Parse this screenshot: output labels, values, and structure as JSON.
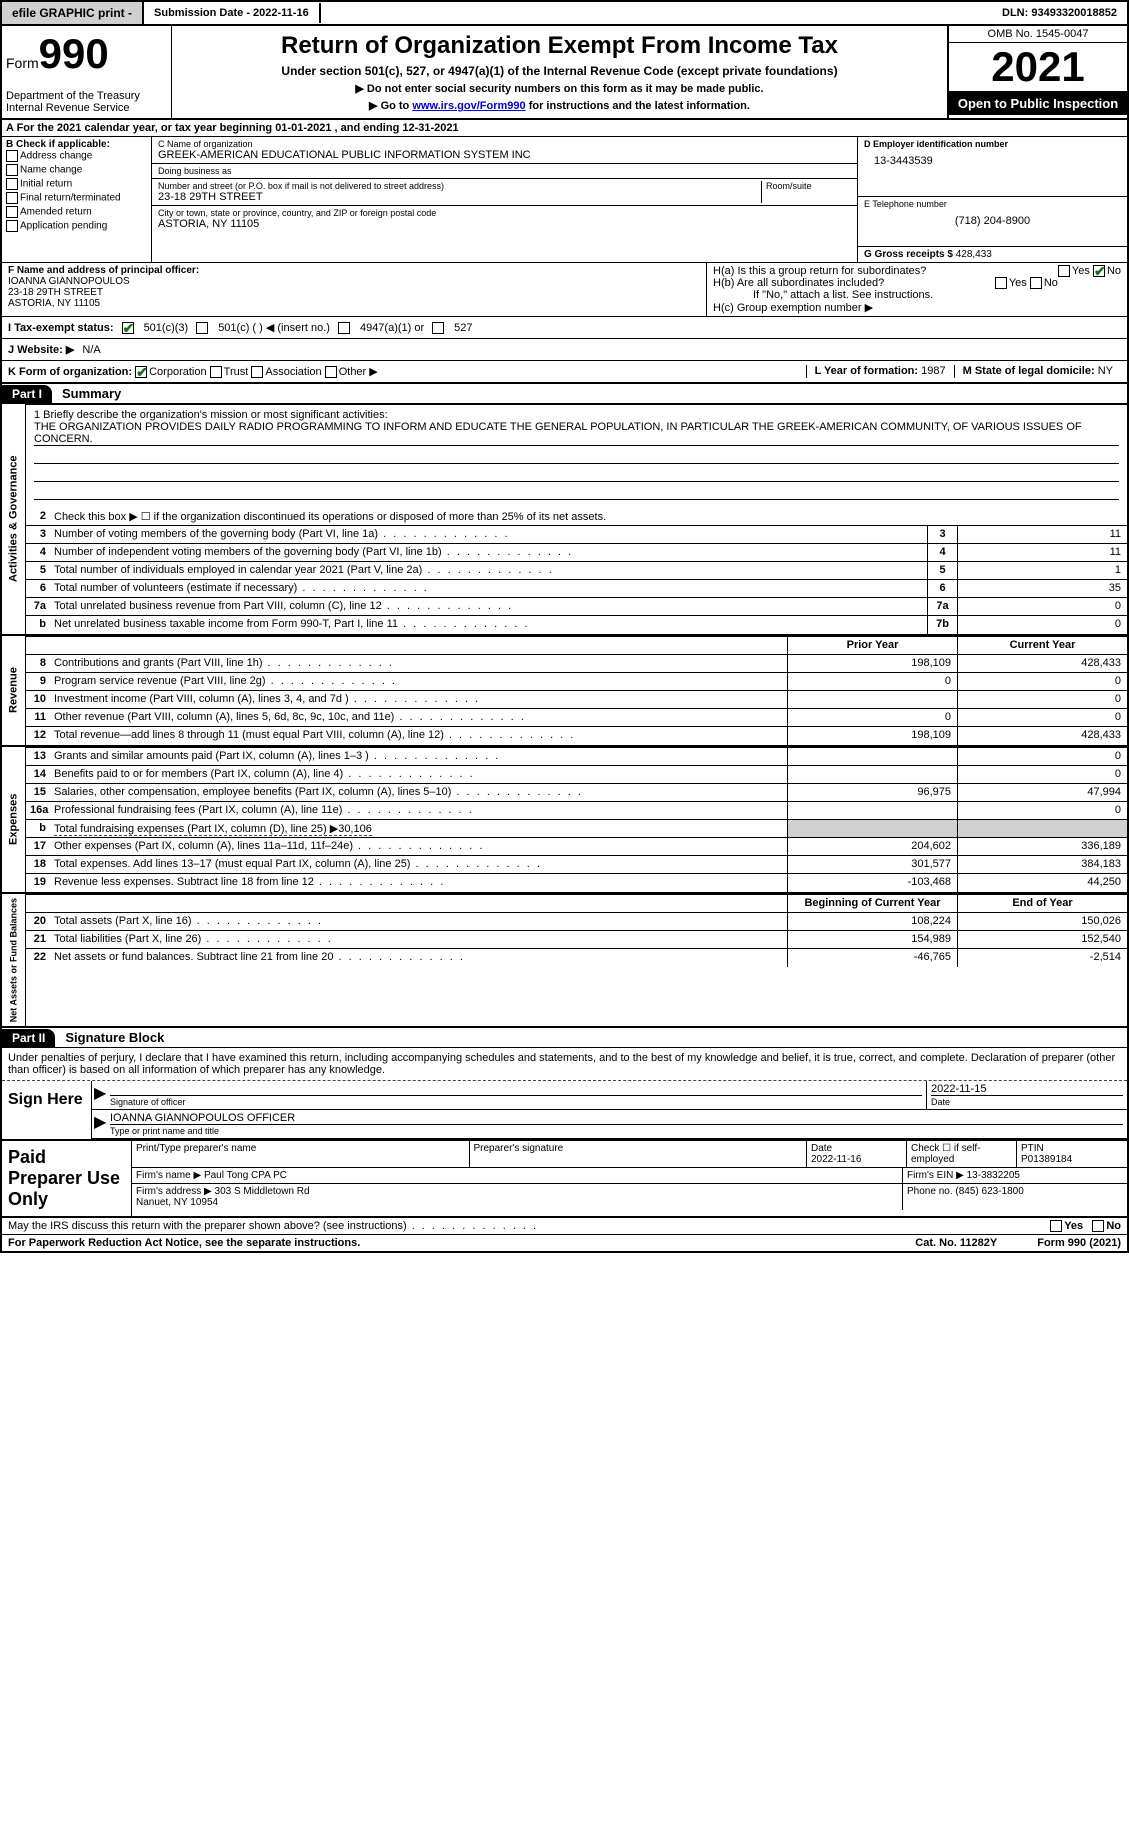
{
  "topbar": {
    "efile": "efile GRAPHIC print -",
    "submission": "Submission Date - 2022-11-16",
    "dln": "DLN: 93493320018852"
  },
  "header": {
    "form_label": "Form",
    "form_number": "990",
    "dept": "Department of the Treasury\nInternal Revenue Service",
    "title": "Return of Organization Exempt From Income Tax",
    "subtitle": "Under section 501(c), 527, or 4947(a)(1) of the Internal Revenue Code (except private foundations)",
    "instr1": "▶ Do not enter social security numbers on this form as it may be made public.",
    "instr2_pre": "▶ Go to ",
    "instr2_link": "www.irs.gov/Form990",
    "instr2_post": " for instructions and the latest information.",
    "omb": "OMB No. 1545-0047",
    "year": "2021",
    "open": "Open to Public Inspection"
  },
  "rowA": "A For the 2021 calendar year, or tax year beginning 01-01-2021   , and ending 12-31-2021",
  "colB": {
    "label": "B Check if applicable:",
    "items": [
      "Address change",
      "Name change",
      "Initial return",
      "Final return/terminated",
      "Amended return",
      "Application pending"
    ]
  },
  "colC": {
    "name_lbl": "C Name of organization",
    "name": "GREEK-AMERICAN EDUCATIONAL PUBLIC INFORMATION SYSTEM INC",
    "dba_lbl": "Doing business as",
    "dba": "",
    "street_lbl": "Number and street (or P.O. box if mail is not delivered to street address)",
    "room_lbl": "Room/suite",
    "street": "23-18 29TH STREET",
    "city_lbl": "City or town, state or province, country, and ZIP or foreign postal code",
    "city": "ASTORIA, NY  11105"
  },
  "colD": {
    "ein_lbl": "D Employer identification number",
    "ein": "13-3443539",
    "phone_lbl": "E Telephone number",
    "phone": "(718) 204-8900",
    "gross_lbl": "G Gross receipts $",
    "gross": "428,433"
  },
  "rowF": {
    "lbl": "F Name and address of principal officer:",
    "name": "IOANNA GIANNOPOULOS",
    "street": "23-18 29TH STREET",
    "city": "ASTORIA, NY  11105"
  },
  "rowH": {
    "a": "H(a)  Is this a group return for subordinates?",
    "b": "H(b)  Are all subordinates included?",
    "note": "If \"No,\" attach a list. See instructions.",
    "c": "H(c)  Group exemption number ▶"
  },
  "rowI": {
    "label": "I   Tax-exempt status:",
    "opt1": "501(c)(3)",
    "opt2": "501(c) (  ) ◀ (insert no.)",
    "opt3": "4947(a)(1) or",
    "opt4": "527"
  },
  "rowJ": {
    "label": "J   Website: ▶",
    "val": "N/A"
  },
  "rowK": {
    "label": "K Form of organization:",
    "opts": [
      "Corporation",
      "Trust",
      "Association",
      "Other ▶"
    ],
    "l_lbl": "L Year of formation:",
    "l_val": "1987",
    "m_lbl": "M State of legal domicile:",
    "m_val": "NY"
  },
  "part1": {
    "hdr": "Part I",
    "title": "Summary"
  },
  "mission": {
    "lbl": "1  Briefly describe the organization's mission or most significant activities:",
    "text": "THE ORGANIZATION PROVIDES DAILY RADIO PROGRAMMING TO INFORM AND EDUCATE THE GENERAL POPULATION, IN PARTICULAR THE GREEK-AMERICAN COMMUNITY, OF VARIOUS ISSUES OF CONCERN."
  },
  "line2": "Check this box ▶ ☐  if the organization discontinued its operations or disposed of more than 25% of its net assets.",
  "activities": {
    "tab": "Activities & Governance",
    "lines": [
      {
        "n": "3",
        "d": "Number of voting members of the governing body (Part VI, line 1a)",
        "box": "3",
        "v": "11"
      },
      {
        "n": "4",
        "d": "Number of independent voting members of the governing body (Part VI, line 1b)",
        "box": "4",
        "v": "11"
      },
      {
        "n": "5",
        "d": "Total number of individuals employed in calendar year 2021 (Part V, line 2a)",
        "box": "5",
        "v": "1"
      },
      {
        "n": "6",
        "d": "Total number of volunteers (estimate if necessary)",
        "box": "6",
        "v": "35"
      },
      {
        "n": "7a",
        "d": "Total unrelated business revenue from Part VIII, column (C), line 12",
        "box": "7a",
        "v": "0"
      },
      {
        "n": "b",
        "d": "Net unrelated business taxable income from Form 990-T, Part I, line 11",
        "box": "7b",
        "v": "0"
      }
    ]
  },
  "col_hdr": {
    "prior": "Prior Year",
    "current": "Current Year",
    "beg": "Beginning of Current Year",
    "end": "End of Year"
  },
  "revenue": {
    "tab": "Revenue",
    "lines": [
      {
        "n": "8",
        "d": "Contributions and grants (Part VIII, line 1h)",
        "p": "198,109",
        "c": "428,433"
      },
      {
        "n": "9",
        "d": "Program service revenue (Part VIII, line 2g)",
        "p": "0",
        "c": "0"
      },
      {
        "n": "10",
        "d": "Investment income (Part VIII, column (A), lines 3, 4, and 7d )",
        "p": "",
        "c": "0"
      },
      {
        "n": "11",
        "d": "Other revenue (Part VIII, column (A), lines 5, 6d, 8c, 9c, 10c, and 11e)",
        "p": "0",
        "c": "0"
      },
      {
        "n": "12",
        "d": "Total revenue—add lines 8 through 11 (must equal Part VIII, column (A), line 12)",
        "p": "198,109",
        "c": "428,433"
      }
    ]
  },
  "expenses": {
    "tab": "Expenses",
    "lines": [
      {
        "n": "13",
        "d": "Grants and similar amounts paid (Part IX, column (A), lines 1–3 )",
        "p": "",
        "c": "0"
      },
      {
        "n": "14",
        "d": "Benefits paid to or for members (Part IX, column (A), line 4)",
        "p": "",
        "c": "0"
      },
      {
        "n": "15",
        "d": "Salaries, other compensation, employee benefits (Part IX, column (A), lines 5–10)",
        "p": "96,975",
        "c": "47,994"
      },
      {
        "n": "16a",
        "d": "Professional fundraising fees (Part IX, column (A), line 11e)",
        "p": "",
        "c": "0"
      },
      {
        "n": "b",
        "d": "Total fundraising expenses (Part IX, column (D), line 25) ▶30,106",
        "shade": true
      },
      {
        "n": "17",
        "d": "Other expenses (Part IX, column (A), lines 11a–11d, 11f–24e)",
        "p": "204,602",
        "c": "336,189"
      },
      {
        "n": "18",
        "d": "Total expenses. Add lines 13–17 (must equal Part IX, column (A), line 25)",
        "p": "301,577",
        "c": "384,183"
      },
      {
        "n": "19",
        "d": "Revenue less expenses. Subtract line 18 from line 12",
        "p": "-103,468",
        "c": "44,250"
      }
    ]
  },
  "netassets": {
    "tab": "Net Assets or Fund Balances",
    "lines": [
      {
        "n": "20",
        "d": "Total assets (Part X, line 16)",
        "p": "108,224",
        "c": "150,026"
      },
      {
        "n": "21",
        "d": "Total liabilities (Part X, line 26)",
        "p": "154,989",
        "c": "152,540"
      },
      {
        "n": "22",
        "d": "Net assets or fund balances. Subtract line 21 from line 20",
        "p": "-46,765",
        "c": "-2,514"
      }
    ]
  },
  "part2": {
    "hdr": "Part II",
    "title": "Signature Block"
  },
  "sig": {
    "text": "Under penalties of perjury, I declare that I have examined this return, including accompanying schedules and statements, and to the best of my knowledge and belief, it is true, correct, and complete. Declaration of preparer (other than officer) is based on all information of which preparer has any knowledge.",
    "here": "Sign Here",
    "officer_lbl": "Signature of officer",
    "date_lbl": "Date",
    "date": "2022-11-15",
    "name_lbl": "Type or print name and title",
    "name": "IOANNA GIANNOPOULOS  OFFICER"
  },
  "prep": {
    "lbl": "Paid Preparer Use Only",
    "name_lbl": "Print/Type preparer's name",
    "sig_lbl": "Preparer's signature",
    "date_lbl": "Date",
    "date": "2022-11-16",
    "check_lbl": "Check ☐ if self-employed",
    "ptin_lbl": "PTIN",
    "ptin": "P01389184",
    "firm_name_lbl": "Firm's name   ▶",
    "firm_name": "Paul Tong CPA PC",
    "firm_ein_lbl": "Firm's EIN ▶",
    "firm_ein": "13-3832205",
    "firm_addr_lbl": "Firm's address ▶",
    "firm_addr": "303 S Middletown Rd\nNanuet, NY  10954",
    "phone_lbl": "Phone no.",
    "phone": "(845) 623-1800"
  },
  "discuss": "May the IRS discuss this return with the preparer shown above? (see instructions)",
  "footer": {
    "left": "For Paperwork Reduction Act Notice, see the separate instructions.",
    "center": "Cat. No. 11282Y",
    "right": "Form 990 (2021)"
  }
}
